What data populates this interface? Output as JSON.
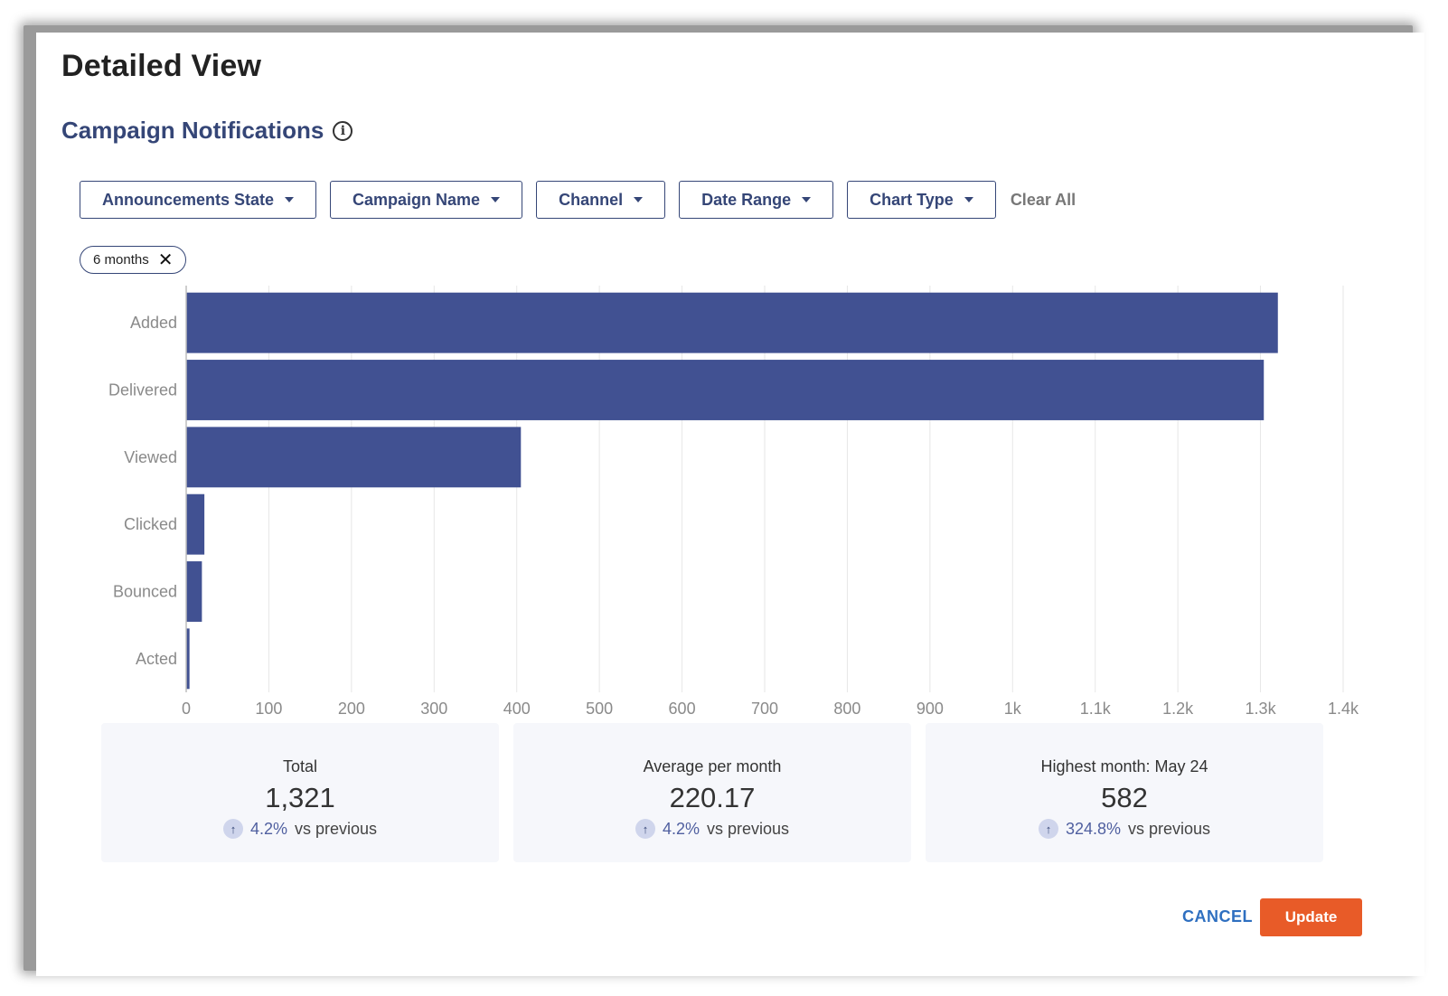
{
  "dialog": {
    "title": "Detailed View",
    "subtitle": "Campaign Notifications"
  },
  "filters": [
    {
      "label": "Announcements State"
    },
    {
      "label": "Campaign Name"
    },
    {
      "label": "Channel"
    },
    {
      "label": "Date Range"
    },
    {
      "label": "Chart Type"
    }
  ],
  "clear_all_label": "Clear All",
  "active_chip": {
    "label": "6 months"
  },
  "chart_data": {
    "type": "bar",
    "orientation": "horizontal",
    "categories": [
      "Added",
      "Delivered",
      "Viewed",
      "Clicked",
      "Bounced",
      "Acted"
    ],
    "values": [
      1321,
      1304,
      405,
      22,
      19,
      4
    ],
    "xlim": [
      0,
      1400
    ],
    "x_ticks": [
      0,
      100,
      200,
      300,
      400,
      500,
      600,
      700,
      800,
      900,
      1000,
      1100,
      1200,
      1300,
      1400
    ],
    "x_tick_labels": [
      "0",
      "100",
      "200",
      "300",
      "400",
      "500",
      "600",
      "700",
      "800",
      "900",
      "1k",
      "1.1k",
      "1.2k",
      "1.3k",
      "1.4k"
    ],
    "grid": true,
    "bar_color": "#415192"
  },
  "stats": [
    {
      "label": "Total",
      "value": "1,321",
      "change": "4.2%",
      "suffix": "vs previous"
    },
    {
      "label": "Average per month",
      "value": "220.17",
      "change": "4.2%",
      "suffix": "vs previous"
    },
    {
      "label": "Highest month: May 24",
      "value": "582",
      "change": "324.8%",
      "suffix": "vs previous"
    }
  ],
  "actions": {
    "cancel_label": "CANCEL",
    "update_label": "Update"
  },
  "colors": {
    "accent": "#354677",
    "bar": "#415192",
    "update_button": "#e85b28",
    "cancel_link": "#2e6fc0"
  }
}
